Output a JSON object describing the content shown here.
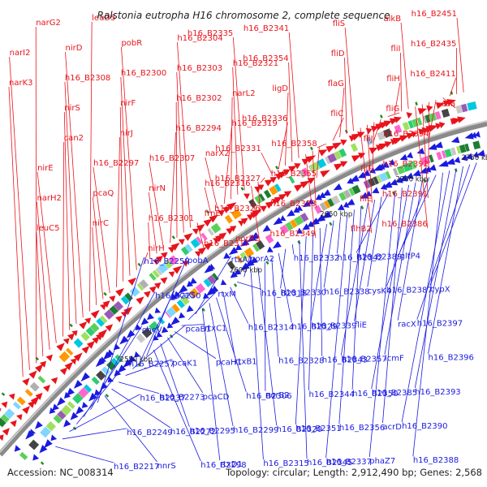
{
  "title": "Ralstonia eutropha H16 chromosome 2, complete sequence",
  "footer": {
    "accession": "Accession: NC_008314",
    "summary": "Topology: circular; Length: 2,912,490 bp; Genes: 2,568"
  },
  "colors": {
    "forward": "#e8141c",
    "reverse": "#1a1ae0",
    "backbone": "#8a8a8a",
    "backbone_light": "#c8c8c8",
    "tick": "#1f8a2a"
  },
  "scale_labels": [
    "2550 kbp",
    "2600 kbp",
    "2650 kbp",
    "2700 kbp",
    "2750 kbp"
  ],
  "forward_labels": [
    "h16_B2451",
    "h16_B2435",
    "h16_B2411",
    "caa",
    "h16_B2394",
    "h16_B2392",
    "h16_B2391",
    "h16_B2386",
    "alkB",
    "fliI",
    "fliH",
    "fliG",
    "fliJ",
    "fliF",
    "fliE_x",
    "flhB2",
    "fliS",
    "fliD",
    "flaG",
    "fliC",
    "h16_B2358",
    "h16_B2355",
    "h16_B2353",
    "h16_B2349",
    "h16_B2341",
    "h16_B2354",
    "ligD",
    "h16_B2336",
    "h16_B2331",
    "h16_B2327",
    "h16_B2326",
    "norR2",
    "h16_B2335",
    "h16_B2321",
    "narL2",
    "h16_B2319",
    "narX2",
    "h16_B2316",
    "frnE",
    "h16_B2317",
    "h16_B2304",
    "h16_B2303",
    "h16_B2302",
    "h16_B2294",
    "h16_B2307",
    "nirN",
    "h16_B2301",
    "nirH",
    "pobR",
    "h16_B2300",
    "nirF",
    "nirJ",
    "h16_B2297",
    "pcaQ",
    "nirC",
    "leuD5",
    "nirD",
    "h16_B2308",
    "nirS",
    "can2",
    "nirE",
    "narH2",
    "leuC5",
    "narG2",
    "narI2",
    "narK3"
  ],
  "forward_text": {
    "fliE_x": "fliE"
  },
  "reverse_labels": [
    "h16_B2217",
    "h16_B2249",
    "h16_B2237",
    "h16_B2257",
    "cheV",
    "h16_B2250",
    "h16_B2259",
    "nnrS",
    "h16_B2272",
    "h16_B2273",
    "pcaK1",
    "pcaB1",
    "pcaG",
    "pobA",
    "h16_B2298",
    "h16_B2295",
    "pcaCD",
    "pcaH1",
    "rtxC1",
    "rtxM",
    "rtxA1",
    "rtxD1",
    "h16_B2299",
    "h16_B2306",
    "rtxB1",
    "h16_B2314",
    "h16_B2318",
    "norA2",
    "h16_B2315",
    "h16_B2320",
    "norB2",
    "h16_B2328",
    "h16_B2329",
    "h16_B2330",
    "h16_B2332",
    "h16_B2345",
    "h16_B2351",
    "h16_B2344",
    "h16_B2343",
    "h16_B2339",
    "h16_B2338",
    "h16_B2342",
    "h16_B2337",
    "h16_B2356",
    "h16_B2350",
    "h16_B2357",
    "fliE",
    "cysK4",
    "h16_B2389",
    "phaZ7",
    "acrD",
    "h16_B2385",
    "icmF",
    "racX",
    "h16_B2387",
    "gltP4",
    "h16_B2388",
    "h16_B2390",
    "h16_B2393",
    "h16_B2396",
    "h16_B2397",
    "cypX"
  ]
}
